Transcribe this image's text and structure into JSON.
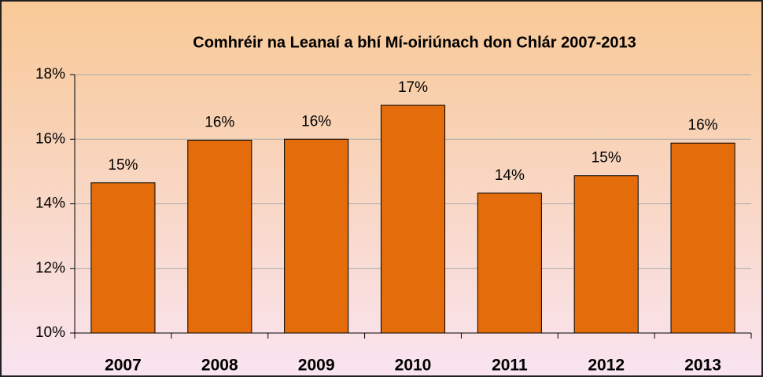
{
  "chart_data": {
    "type": "bar",
    "title": "Comhréir na Leanaí a bhí Mí-oiriúnach don Chlár 2007-2013",
    "categories": [
      "2007",
      "2008",
      "2009",
      "2010",
      "2011",
      "2012",
      "2013"
    ],
    "values": [
      14.65,
      15.97,
      16.0,
      17.05,
      14.33,
      14.87,
      15.88
    ],
    "value_labels": [
      "15%",
      "16%",
      "16%",
      "17%",
      "14%",
      "15%",
      "16%"
    ],
    "color": "#e46c0a",
    "ylim": [
      10,
      18
    ],
    "yticks": [
      {
        "value": 10,
        "label": "10%"
      },
      {
        "value": 12,
        "label": "12%"
      },
      {
        "value": 14,
        "label": "14%"
      },
      {
        "value": 16,
        "label": "16%"
      },
      {
        "value": 18,
        "label": "18%"
      }
    ],
    "grid": true
  }
}
